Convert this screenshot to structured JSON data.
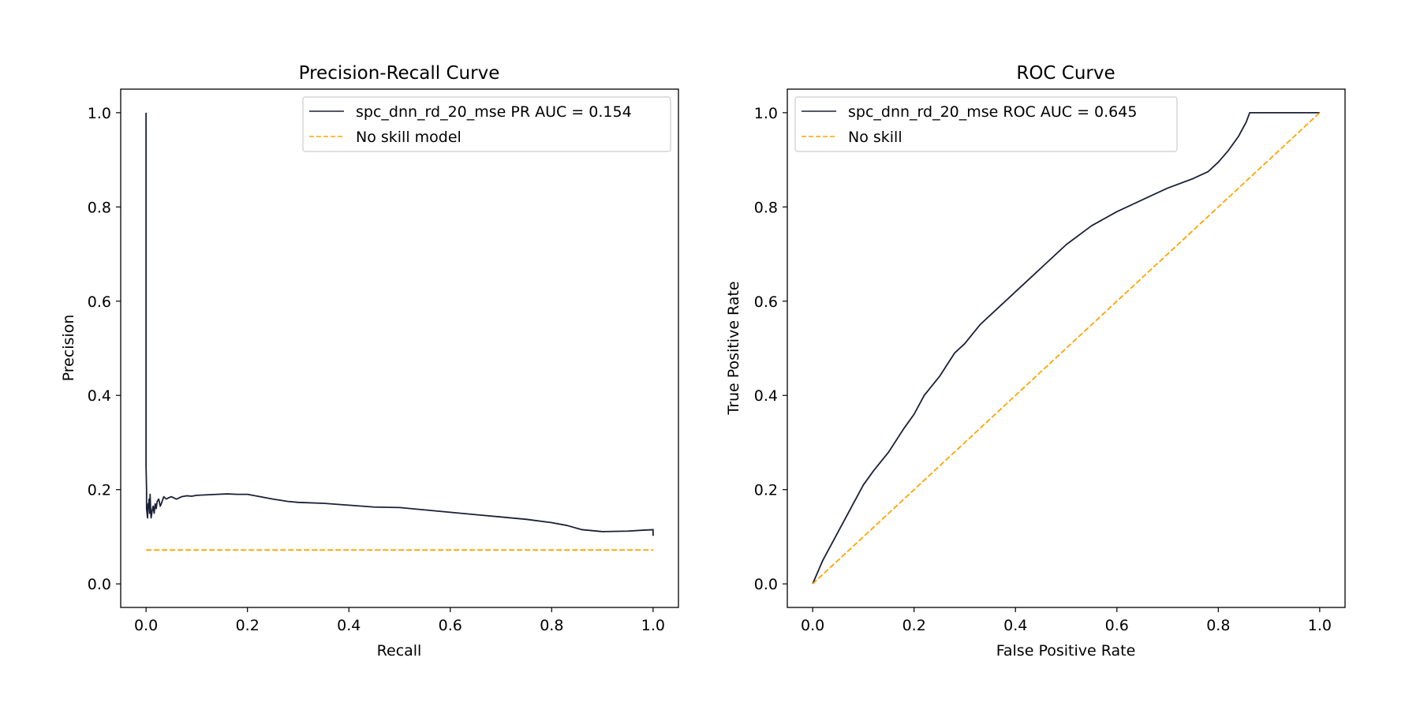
{
  "chart_data": [
    {
      "type": "line",
      "title": "Precision-Recall Curve",
      "xlabel": "Recall",
      "ylabel": "Precision",
      "xlim": [
        -0.05,
        1.05
      ],
      "ylim": [
        -0.05,
        1.05
      ],
      "xticks": [
        "0.0",
        "0.2",
        "0.4",
        "0.6",
        "0.8",
        "1.0"
      ],
      "yticks": [
        "0.0",
        "0.2",
        "0.4",
        "0.6",
        "0.8",
        "1.0"
      ],
      "grid": false,
      "legend_position": "upper-right",
      "series": [
        {
          "name": "spc_dnn_rd_20_mse PR AUC = 0.154",
          "color": "#1b2037",
          "style": "solid",
          "x": [
            0,
            0,
            0,
            0,
            0.001,
            0.001,
            0.002,
            0.003,
            0.004,
            0.005,
            0.006,
            0.007,
            0.008,
            0.009,
            0.01,
            0.012,
            0.014,
            0.016,
            0.018,
            0.02,
            0.022,
            0.025,
            0.028,
            0.03,
            0.035,
            0.04,
            0.045,
            0.05,
            0.06,
            0.07,
            0.08,
            0.09,
            0.1,
            0.12,
            0.14,
            0.16,
            0.18,
            0.2,
            0.22,
            0.25,
            0.28,
            0.3,
            0.35,
            0.4,
            0.45,
            0.5,
            0.55,
            0.6,
            0.65,
            0.7,
            0.75,
            0.8,
            0.83,
            0.86,
            0.9,
            0.95,
            0.98,
            1.0,
            1.0
          ],
          "y": [
            1.0,
            0.5,
            0.33,
            0.25,
            0.2,
            0.16,
            0.15,
            0.14,
            0.17,
            0.16,
            0.18,
            0.15,
            0.19,
            0.16,
            0.14,
            0.155,
            0.165,
            0.15,
            0.17,
            0.16,
            0.175,
            0.18,
            0.165,
            0.17,
            0.185,
            0.18,
            0.183,
            0.185,
            0.18,
            0.185,
            0.187,
            0.186,
            0.188,
            0.189,
            0.19,
            0.191,
            0.19,
            0.19,
            0.186,
            0.18,
            0.175,
            0.173,
            0.171,
            0.167,
            0.163,
            0.162,
            0.157,
            0.152,
            0.147,
            0.142,
            0.137,
            0.13,
            0.124,
            0.115,
            0.111,
            0.112,
            0.114,
            0.115,
            0.102
          ]
        },
        {
          "name": "No skill model",
          "color": "#ffa500",
          "style": "dashed",
          "x": [
            0,
            1
          ],
          "y": [
            0.072,
            0.072
          ]
        }
      ]
    },
    {
      "type": "line",
      "title": "ROC Curve",
      "xlabel": "False Positive Rate",
      "ylabel": "True Positive Rate",
      "xlim": [
        -0.05,
        1.05
      ],
      "ylim": [
        -0.05,
        1.05
      ],
      "xticks": [
        "0.0",
        "0.2",
        "0.4",
        "0.6",
        "0.8",
        "1.0"
      ],
      "yticks": [
        "0.0",
        "0.2",
        "0.4",
        "0.6",
        "0.8",
        "1.0"
      ],
      "grid": false,
      "legend_position": "upper-left",
      "series": [
        {
          "name": "spc_dnn_rd_20_mse ROC AUC = 0.645",
          "color": "#1b2037",
          "style": "solid",
          "x": [
            0,
            0.02,
            0.05,
            0.08,
            0.1,
            0.12,
            0.15,
            0.18,
            0.2,
            0.22,
            0.25,
            0.28,
            0.3,
            0.33,
            0.36,
            0.4,
            0.43,
            0.46,
            0.5,
            0.55,
            0.6,
            0.65,
            0.7,
            0.75,
            0.78,
            0.8,
            0.82,
            0.84,
            0.855,
            0.862,
            0.87,
            0.9,
            0.95,
            1.0
          ],
          "y": [
            0,
            0.05,
            0.11,
            0.17,
            0.21,
            0.24,
            0.28,
            0.33,
            0.36,
            0.4,
            0.44,
            0.49,
            0.51,
            0.55,
            0.58,
            0.62,
            0.65,
            0.68,
            0.72,
            0.76,
            0.79,
            0.815,
            0.84,
            0.86,
            0.875,
            0.895,
            0.92,
            0.95,
            0.98,
            1.0,
            1.0,
            1.0,
            1.0,
            1.0
          ]
        },
        {
          "name": "No skill",
          "color": "#ffa500",
          "style": "dashed",
          "x": [
            0,
            1
          ],
          "y": [
            0,
            1
          ]
        }
      ]
    }
  ]
}
